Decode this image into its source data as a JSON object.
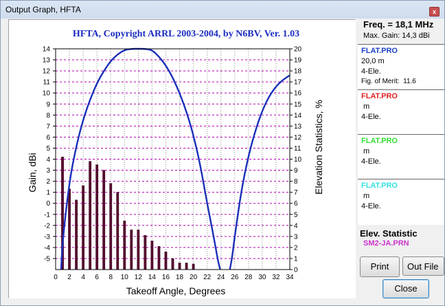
{
  "window": {
    "title": "Output Graph, HFTA",
    "close_glyph": "x"
  },
  "side": {
    "freq": "Freq. = 18,1 MHz",
    "max_gain": "Max. Gain: 14,3 dBi",
    "antennas": [
      {
        "name": "FLAT.PRO",
        "color": "#1a3fc4",
        "line1": "20,0 m",
        "line2": "4-Ele.",
        "line3": "Fig. of Merit:  11.6"
      },
      {
        "name": "FLAT.PRO",
        "color": "#e02020",
        "line1": " m",
        "line2": "4-Ele.",
        "line3": ""
      },
      {
        "name": "FLAT.PRO",
        "color": "#33dd33",
        "line1": " m",
        "line2": "4-Ele.",
        "line3": ""
      },
      {
        "name": "FLAT.PRO",
        "color": "#33e0e0",
        "line1": " m",
        "line2": "4-Ele.",
        "line3": ""
      }
    ],
    "elev_title": "Elev. Statistic",
    "elev_file": "SM2-JA.PRN"
  },
  "buttons": {
    "print": "Print",
    "outfile": "Out File",
    "close": "Close"
  },
  "chart_data": {
    "type": "bar",
    "title": "HFTA, Copyright ARRL 2003-2004, by N6BV, Ver. 1.03",
    "xlabel": "Takeoff Angle, Degrees",
    "ylabel": "Gain, dBi",
    "y2label": "Elevation Statistics, %",
    "xlim": [
      0,
      34
    ],
    "ylim": [
      -6,
      14
    ],
    "y2lim": [
      0,
      20
    ],
    "x_ticks": [
      "0",
      "2",
      "4",
      "6",
      "8",
      "10",
      "12",
      "14",
      "16",
      "18",
      "20",
      "22",
      "24",
      "26",
      "28",
      "30",
      "32",
      "34"
    ],
    "y_ticks": [
      "-5",
      "-4",
      "-3",
      "-2",
      "-1",
      "0",
      "1",
      "2",
      "3",
      "4",
      "5",
      "6",
      "7",
      "8",
      "9",
      "10",
      "11",
      "12",
      "13",
      "14"
    ],
    "y2_ticks": [
      "0",
      "1",
      "2",
      "3",
      "4",
      "5",
      "6",
      "7",
      "8",
      "9",
      "10",
      "11",
      "12",
      "13",
      "14",
      "15",
      "16",
      "17",
      "18",
      "19",
      "20"
    ],
    "grid": true,
    "series": [
      {
        "name": "FLAT.PRO",
        "kind": "line",
        "axis": "gain",
        "color": "#1a2fb8",
        "x": [
          0.8,
          1,
          2,
          3,
          4,
          5,
          6,
          7,
          8,
          9,
          10,
          11,
          12,
          13,
          14,
          15,
          16,
          17,
          18,
          19,
          20,
          21,
          22,
          23,
          23.6,
          23.9,
          25.3,
          25.6,
          26,
          27,
          28,
          29,
          30,
          31,
          32,
          33,
          34
        ],
        "values": [
          -6.0,
          -3.5,
          2.0,
          5.2,
          7.6,
          9.4,
          10.9,
          12.0,
          12.9,
          13.5,
          13.9,
          14.2,
          14.3,
          14.2,
          13.9,
          13.3,
          12.5,
          11.4,
          10.0,
          8.3,
          6.2,
          3.5,
          0.0,
          -3.2,
          -5.3,
          -6.0,
          -6.0,
          -5.0,
          -3.0,
          1.3,
          4.3,
          6.6,
          8.4,
          9.7,
          10.6,
          11.2,
          11.6
        ]
      },
      {
        "name": "SM2-JA.PRN",
        "kind": "bar",
        "axis": "elevation",
        "color": "#5a0a30",
        "x": [
          1,
          2,
          3,
          4,
          5,
          6,
          7,
          8,
          9,
          10,
          11,
          12,
          13,
          14,
          15,
          16,
          17,
          18,
          19,
          20,
          21,
          22,
          23
        ],
        "values": [
          10.2,
          7.3,
          6.3,
          7.6,
          9.8,
          9.5,
          9.0,
          7.8,
          7.0,
          4.4,
          3.6,
          3.6,
          3.1,
          2.6,
          2.1,
          1.6,
          1.0,
          0.6,
          0.6,
          0.5,
          0.0,
          0.0,
          0.0
        ]
      }
    ]
  }
}
